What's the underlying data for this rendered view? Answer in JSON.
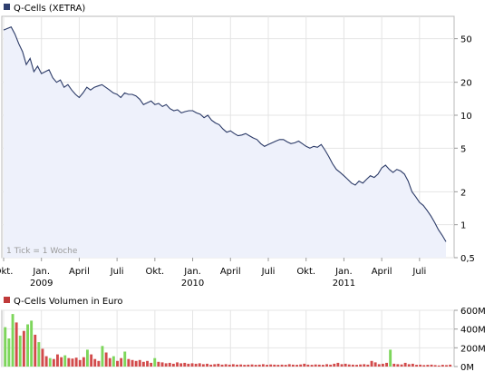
{
  "chart_data": [
    {
      "type": "line",
      "title": "Q-Cells (XETRA)",
      "legend_color": "#2f3f6f",
      "line_color": "#2b3a67",
      "fill_color": "#eef1fb",
      "y_scale": "log",
      "ylim": [
        0.5,
        80
      ],
      "y_ticks": [
        {
          "value": 50,
          "label": "50"
        },
        {
          "value": 20,
          "label": "20"
        },
        {
          "value": 10,
          "label": "10"
        },
        {
          "value": 5,
          "label": "5"
        },
        {
          "value": 2,
          "label": "2"
        },
        {
          "value": 1,
          "label": "1"
        },
        {
          "value": 0.5,
          "label": "0,5"
        }
      ],
      "x_ticks": [
        {
          "label": "Okt.",
          "sub": "",
          "month": 0
        },
        {
          "label": "Jan.",
          "sub": "2009",
          "month": 3
        },
        {
          "label": "April",
          "sub": "",
          "month": 6
        },
        {
          "label": "Juli",
          "sub": "",
          "month": 9
        },
        {
          "label": "Okt.",
          "sub": "",
          "month": 12
        },
        {
          "label": "Jan.",
          "sub": "2010",
          "month": 15
        },
        {
          "label": "April",
          "sub": "",
          "month": 18
        },
        {
          "label": "Juli",
          "sub": "",
          "month": 21
        },
        {
          "label": "Okt.",
          "sub": "",
          "month": 24
        },
        {
          "label": "Jan.",
          "sub": "2011",
          "month": 27
        },
        {
          "label": "April",
          "sub": "",
          "month": 30
        },
        {
          "label": "Juli",
          "sub": "",
          "month": 33
        }
      ],
      "note": "1 Tick = 1 Woche",
      "grid": true,
      "series": [
        {
          "x": [
            0,
            0.3,
            0.6,
            0.9,
            1.2,
            1.5,
            1.8,
            2.1,
            2.4,
            2.7,
            3.0,
            3.3,
            3.6,
            3.9,
            4.2,
            4.5,
            4.8,
            5.1,
            5.4,
            5.7,
            6.0,
            6.3,
            6.6,
            6.9,
            7.2,
            7.5,
            7.8,
            8.1,
            8.4,
            8.7,
            9.0,
            9.3,
            9.6,
            9.9,
            10.2,
            10.5,
            10.8,
            11.1,
            11.4,
            11.7,
            12.0,
            12.3,
            12.6,
            12.9,
            13.2,
            13.5,
            13.8,
            14.1,
            14.4,
            14.7,
            15.0,
            15.3,
            15.6,
            15.9,
            16.2,
            16.5,
            16.8,
            17.1,
            17.4,
            17.7,
            18.0,
            18.3,
            18.6,
            18.9,
            19.2,
            19.5,
            19.8,
            20.1,
            20.4,
            20.7,
            21.0,
            21.3,
            21.6,
            21.9,
            22.2,
            22.5,
            22.8,
            23.1,
            23.4,
            23.7,
            24.0,
            24.3,
            24.6,
            24.9,
            25.2,
            25.5,
            25.8,
            26.1,
            26.4,
            26.7,
            27.0,
            27.3,
            27.6,
            27.9,
            28.2,
            28.5,
            28.8,
            29.1,
            29.4,
            29.7,
            30.0,
            30.3,
            30.6,
            30.9,
            31.2,
            31.5,
            31.8,
            32.1,
            32.4,
            32.7,
            33.0,
            33.3,
            33.6,
            33.9,
            34.2,
            34.5,
            34.8,
            35.1
          ],
          "values": [
            60,
            62,
            64,
            55,
            45,
            38,
            29,
            33,
            25,
            28,
            24,
            25,
            26,
            22,
            20,
            21,
            18,
            19,
            17,
            15.5,
            14.5,
            16,
            18,
            17,
            18,
            18.5,
            19,
            18,
            17,
            16,
            15.5,
            14.5,
            16,
            15.5,
            15.5,
            15,
            14,
            12.5,
            13,
            13.5,
            12.5,
            12.8,
            12,
            12.5,
            11.5,
            11,
            11.2,
            10.5,
            10.8,
            11,
            11,
            10.5,
            10.2,
            9.5,
            10,
            9,
            8.5,
            8.2,
            7.5,
            7,
            7.2,
            6.8,
            6.5,
            6.6,
            6.8,
            6.5,
            6.2,
            6,
            5.5,
            5.2,
            5.4,
            5.6,
            5.8,
            6,
            6,
            5.7,
            5.5,
            5.6,
            5.8,
            5.5,
            5.2,
            5,
            5.2,
            5.1,
            5.4,
            4.8,
            4.2,
            3.6,
            3.2,
            3,
            2.8,
            2.6,
            2.4,
            2.3,
            2.5,
            2.4,
            2.6,
            2.8,
            2.7,
            2.9,
            3.3,
            3.5,
            3.2,
            3.0,
            3.2,
            3.1,
            2.9,
            2.5,
            2.0,
            1.8,
            1.6,
            1.5,
            1.35,
            1.2,
            1.05,
            0.9,
            0.8,
            0.7
          ]
        }
      ]
    },
    {
      "type": "bar",
      "title": "Q-Cells Volumen in Euro",
      "legend_color": "#c03a3a",
      "up_color": "#7dd65b",
      "down_color": "#d24b4b",
      "ylim": [
        0,
        600
      ],
      "y_ticks": [
        {
          "value": 600,
          "label": "600M"
        },
        {
          "value": 400,
          "label": "400M"
        },
        {
          "value": 200,
          "label": "200M"
        },
        {
          "value": 0,
          "label": "0M"
        }
      ],
      "unit": "M",
      "values": [
        420,
        300,
        560,
        470,
        330,
        380,
        450,
        490,
        340,
        260,
        190,
        110,
        90,
        80,
        130,
        100,
        120,
        90,
        85,
        95,
        70,
        100,
        180,
        130,
        80,
        60,
        220,
        150,
        90,
        110,
        60,
        90,
        160,
        80,
        70,
        60,
        70,
        50,
        60,
        40,
        90,
        50,
        45,
        35,
        40,
        30,
        45,
        35,
        40,
        30,
        35,
        30,
        35,
        25,
        30,
        20,
        25,
        30,
        20,
        25,
        20,
        25,
        20,
        22,
        18,
        20,
        22,
        18,
        20,
        25,
        18,
        22,
        20,
        18,
        20,
        18,
        25,
        20,
        18,
        22,
        30,
        20,
        18,
        22,
        20,
        18,
        25,
        20,
        30,
        40,
        25,
        30,
        22,
        20,
        18,
        22,
        25,
        20,
        60,
        45,
        25,
        30,
        40,
        180,
        30,
        25,
        22,
        40,
        25,
        30,
        18,
        20,
        15,
        18,
        20,
        15,
        12,
        18,
        15,
        20
      ],
      "up": [
        1,
        1,
        1,
        0,
        1,
        0,
        1,
        1,
        0,
        1,
        0,
        0,
        1,
        0,
        0,
        0,
        1,
        0,
        0,
        0,
        0,
        0,
        1,
        0,
        0,
        0,
        1,
        0,
        0,
        1,
        0,
        0,
        1,
        0,
        0,
        0,
        0,
        0,
        0,
        0,
        1,
        0,
        0,
        0,
        0,
        0,
        0,
        0,
        0,
        0,
        0,
        0,
        0,
        0,
        0,
        0,
        0,
        0,
        0,
        0,
        0,
        0,
        0,
        0,
        0,
        0,
        0,
        0,
        0,
        0,
        0,
        0,
        0,
        0,
        0,
        0,
        0,
        0,
        0,
        0,
        0,
        0,
        0,
        0,
        0,
        0,
        0,
        0,
        0,
        0,
        0,
        0,
        0,
        0,
        0,
        0,
        0,
        0,
        0,
        0,
        0,
        0,
        0,
        1,
        0,
        0,
        0,
        0,
        0,
        0,
        0,
        0,
        0,
        0,
        0,
        0,
        0,
        0,
        0,
        0
      ]
    }
  ]
}
